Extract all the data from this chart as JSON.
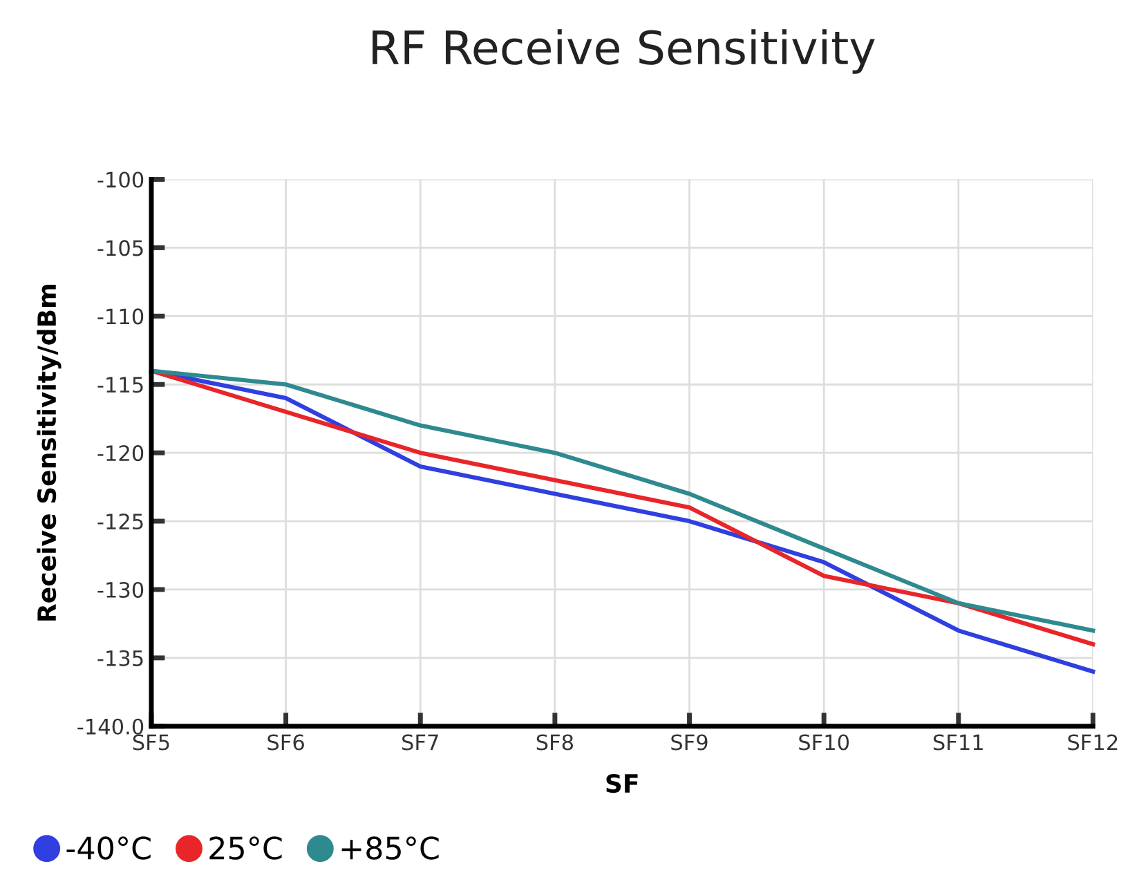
{
  "chart_data": {
    "type": "line",
    "title": "RF Receive Sensitivity",
    "xlabel": "SF",
    "ylabel": "Receive Sensitivity/dBm",
    "categories": [
      "SF5",
      "SF6",
      "SF7",
      "SF8",
      "SF9",
      "SF10",
      "SF11",
      "SF12"
    ],
    "series": [
      {
        "name": "-40°C",
        "color": "#2f3fe0",
        "values": [
          -114,
          -116,
          -121,
          -123,
          -125,
          -128,
          -133,
          -136
        ]
      },
      {
        "name": "25°C",
        "color": "#e8262a",
        "values": [
          -114,
          -117,
          -120,
          -122,
          -124,
          -129,
          -131,
          -134
        ]
      },
      {
        "name": "+85°C",
        "color": "#2f8a8f",
        "values": [
          -114,
          -115,
          -118,
          -120,
          -123,
          -127,
          -131,
          -133
        ]
      }
    ],
    "ylim": [
      -140,
      -100
    ],
    "yticks": [
      {
        "value": -140,
        "label": "-140.0"
      },
      {
        "value": -135,
        "label": "-135"
      },
      {
        "value": -130,
        "label": "-130"
      },
      {
        "value": -125,
        "label": "-125"
      },
      {
        "value": -120,
        "label": "-120"
      },
      {
        "value": -115,
        "label": "-115"
      },
      {
        "value": -110,
        "label": "-110"
      },
      {
        "value": -105,
        "label": "-105"
      },
      {
        "value": -100,
        "label": "-100"
      }
    ],
    "grid": true,
    "legend": "bottom left",
    "marker": "none",
    "line_style": "solid"
  }
}
